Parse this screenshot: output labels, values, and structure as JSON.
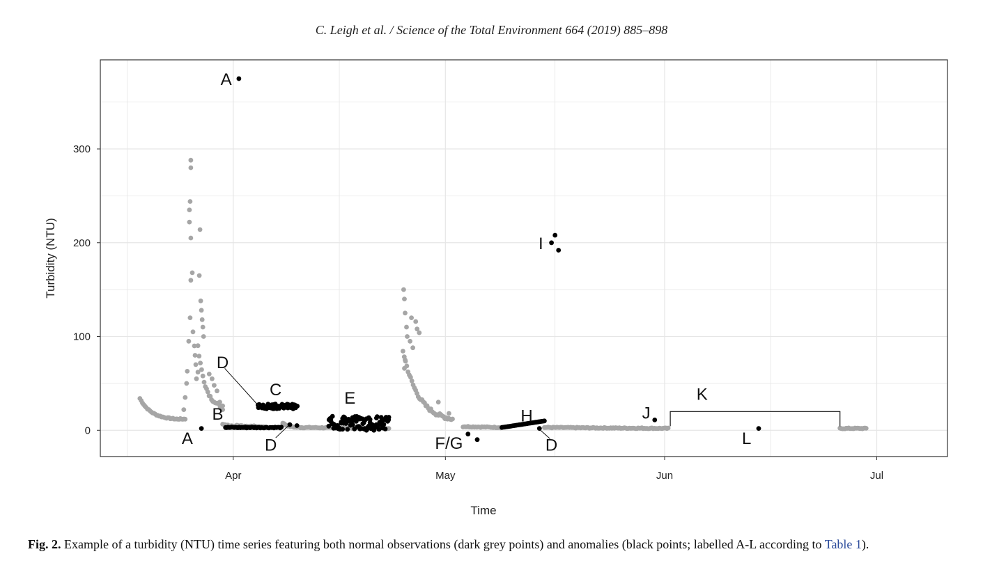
{
  "header": {
    "running_head": "C. Leigh et al. / Science of the Total Environment 664 (2019) 885–898"
  },
  "caption": {
    "label": "Fig. 2.",
    "text_before": " Example of a turbidity (NTU) time series featuring both normal observations (dark grey points) and anomalies (black points; labelled A-L according to ",
    "link": "Table 1",
    "text_after": ")."
  },
  "colors": {
    "normal": "#a6a6a6",
    "anomaly": "#000000",
    "grid": "#e6e6e6",
    "axis": "#333333"
  },
  "chart_data": {
    "type": "scatter",
    "xlabel": "Time",
    "ylabel": "Turbidity (NTU)",
    "x_unit": "day of year (2017 calendar; Apr 1 = day 91)",
    "xlim": [
      72.2,
      192.0
    ],
    "ylim": [
      -28,
      395
    ],
    "x_ticks": [
      {
        "label": "Apr",
        "value": 91
      },
      {
        "label": "May",
        "value": 121
      },
      {
        "label": "Jun",
        "value": 152
      },
      {
        "label": "Jul",
        "value": 182
      }
    ],
    "y_ticks": [
      0,
      100,
      200,
      300
    ],
    "grid": true,
    "series": [
      {
        "name": "normal observations",
        "color": "#a6a6a6",
        "segments": [
          {
            "x_start": 77.8,
            "x_end": 83.0,
            "y_start": 34,
            "y_end": 12,
            "shape": "decay"
          },
          {
            "x_start": 83.0,
            "x_end": 84.2,
            "y_start": 12,
            "y_end": 12,
            "shape": "flat"
          },
          {
            "x_start": 98.0,
            "x_end": 100.5,
            "y_start": 8,
            "y_end": 3,
            "shape": "decay"
          },
          {
            "x_start": 100.5,
            "x_end": 113.0,
            "y_start": 3,
            "y_end": 2,
            "shape": "flat"
          },
          {
            "x_start": 123.5,
            "x_end": 129.0,
            "y_start": 4,
            "y_end": 3,
            "shape": "flat"
          },
          {
            "x_start": 135.0,
            "x_end": 152.5,
            "y_start": 3,
            "y_end": 2,
            "shape": "flat"
          },
          {
            "x_start": 176.8,
            "x_end": 180.5,
            "y_start": 2,
            "y_end": 2,
            "shape": "flat"
          },
          {
            "x_start": 115.0,
            "x_end": 122.0,
            "y_start": 85,
            "y_end": 12,
            "shape": "decay"
          },
          {
            "x_start": 86.0,
            "x_end": 89.5,
            "y_start": 90,
            "y_end": 25,
            "shape": "decay"
          },
          {
            "x_start": 89.5,
            "x_end": 91.5,
            "y_start": 6,
            "y_end": 4,
            "shape": "flat"
          },
          {
            "x_start": 91.5,
            "x_end": 95.5,
            "y_start": 5,
            "y_end": 4,
            "shape": "flat"
          }
        ],
        "points": [
          {
            "x": 84.0,
            "y": 22
          },
          {
            "x": 84.2,
            "y": 35
          },
          {
            "x": 84.4,
            "y": 50
          },
          {
            "x": 84.5,
            "y": 63
          },
          {
            "x": 84.7,
            "y": 95
          },
          {
            "x": 84.9,
            "y": 120
          },
          {
            "x": 85.0,
            "y": 160
          },
          {
            "x": 85.0,
            "y": 205
          },
          {
            "x": 84.8,
            "y": 222
          },
          {
            "x": 84.8,
            "y": 235
          },
          {
            "x": 84.9,
            "y": 244
          },
          {
            "x": 85.0,
            "y": 280
          },
          {
            "x": 85.0,
            "y": 288
          },
          {
            "x": 85.2,
            "y": 168
          },
          {
            "x": 85.3,
            "y": 105
          },
          {
            "x": 85.5,
            "y": 90
          },
          {
            "x": 85.6,
            "y": 80
          },
          {
            "x": 85.7,
            "y": 70
          },
          {
            "x": 85.8,
            "y": 55
          },
          {
            "x": 86.0,
            "y": 62
          },
          {
            "x": 86.2,
            "y": 165
          },
          {
            "x": 86.3,
            "y": 214
          },
          {
            "x": 86.4,
            "y": 138
          },
          {
            "x": 86.5,
            "y": 128
          },
          {
            "x": 86.6,
            "y": 118
          },
          {
            "x": 86.7,
            "y": 110
          },
          {
            "x": 86.8,
            "y": 100
          },
          {
            "x": 87.6,
            "y": 60
          },
          {
            "x": 88.0,
            "y": 55
          },
          {
            "x": 88.3,
            "y": 48
          },
          {
            "x": 88.7,
            "y": 42
          },
          {
            "x": 89.1,
            "y": 30
          },
          {
            "x": 89.3,
            "y": 24
          },
          {
            "x": 89.5,
            "y": 22
          },
          {
            "x": 115.1,
            "y": 150
          },
          {
            "x": 115.2,
            "y": 140
          },
          {
            "x": 115.3,
            "y": 125
          },
          {
            "x": 115.5,
            "y": 110
          },
          {
            "x": 115.6,
            "y": 100
          },
          {
            "x": 115.3,
            "y": 75
          },
          {
            "x": 115.2,
            "y": 66
          },
          {
            "x": 116.0,
            "y": 95
          },
          {
            "x": 116.4,
            "y": 88
          },
          {
            "x": 116.8,
            "y": 116
          },
          {
            "x": 117.0,
            "y": 108
          },
          {
            "x": 117.3,
            "y": 104
          },
          {
            "x": 116.2,
            "y": 120
          },
          {
            "x": 120.0,
            "y": 30
          },
          {
            "x": 121.5,
            "y": 18
          }
        ]
      },
      {
        "name": "anomalies",
        "color": "#000000",
        "groups": [
          {
            "label": "A",
            "points": [
              {
                "x": 86.5,
                "y": 2
              },
              {
                "x": 91.8,
                "y": 375
              }
            ]
          },
          {
            "label": "B",
            "segment": {
              "x_start": 89.9,
              "x_end": 97.8,
              "y": 3,
              "shape": "flat"
            }
          },
          {
            "label": "C",
            "segment": {
              "x_start": 94.5,
              "x_end": 100.0,
              "y_start": 23,
              "y_end": 28,
              "shape": "noisy"
            }
          },
          {
            "label": "D",
            "points": [
              {
                "x": 99.0,
                "y": 6
              },
              {
                "x": 100.0,
                "y": 5
              },
              {
                "x": 134.3,
                "y": 2
              }
            ]
          },
          {
            "label": "E",
            "segment": {
              "x_start": 104.5,
              "x_end": 113.0,
              "y_start": 0,
              "y_end": 15,
              "shape": "noisy"
            }
          },
          {
            "label": "F/G",
            "points": [
              {
                "x": 124.2,
                "y": -4
              },
              {
                "x": 125.5,
                "y": -10
              }
            ]
          },
          {
            "label": "H",
            "segment": {
              "x_start": 129.0,
              "x_end": 135.0,
              "y_start": 3,
              "y_end": 10,
              "shape": "linear"
            }
          },
          {
            "label": "I",
            "points": [
              {
                "x": 136.0,
                "y": 200
              },
              {
                "x": 136.5,
                "y": 208
              },
              {
                "x": 137.0,
                "y": 192
              }
            ]
          },
          {
            "label": "J",
            "points": [
              {
                "x": 150.6,
                "y": 11
              }
            ]
          },
          {
            "label": "K",
            "bracket": {
              "x_start": 152.8,
              "x_end": 176.8,
              "y": 20
            }
          },
          {
            "label": "L",
            "points": [
              {
                "x": 165.3,
                "y": 2
              }
            ]
          }
        ]
      }
    ],
    "annotations": [
      {
        "text": "A",
        "x": 84.5,
        "y": -8
      },
      {
        "text": "A",
        "x": 90.0,
        "y": 375
      },
      {
        "text": "B",
        "x": 88.8,
        "y": 18
      },
      {
        "text": "C",
        "x": 97.0,
        "y": 44
      },
      {
        "text": "D",
        "x": 89.5,
        "y": 73
      },
      {
        "text": "D",
        "x": 96.3,
        "y": -15
      },
      {
        "text": "D",
        "x": 136.0,
        "y": -15
      },
      {
        "text": "E",
        "x": 107.5,
        "y": 35
      },
      {
        "text": "F/G",
        "x": 121.5,
        "y": -13
      },
      {
        "text": "H",
        "x": 132.5,
        "y": 16
      },
      {
        "text": "I",
        "x": 134.5,
        "y": 200
      },
      {
        "text": "J",
        "x": 149.4,
        "y": 19
      },
      {
        "text": "K",
        "x": 157.3,
        "y": 39
      },
      {
        "text": "L",
        "x": 163.6,
        "y": -8
      }
    ]
  }
}
